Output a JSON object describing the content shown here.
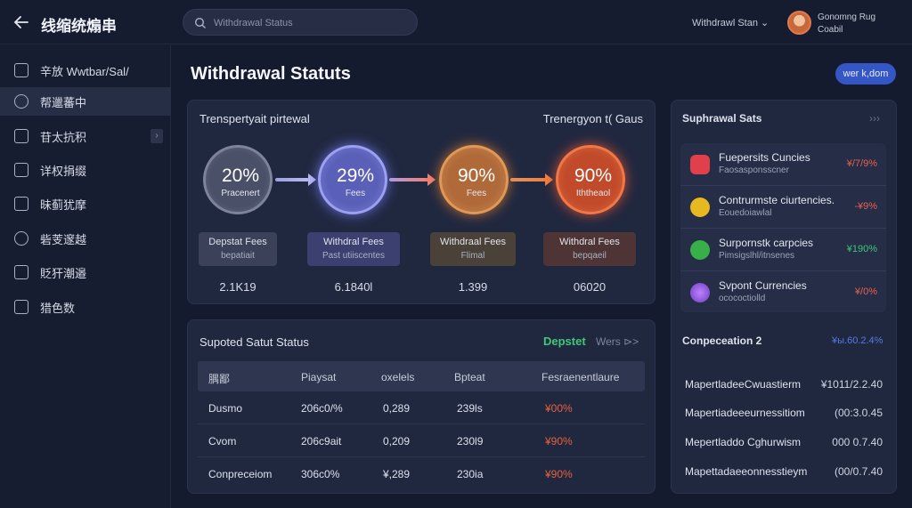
{
  "header": {
    "app_title": "线缩统煽串",
    "search_placeholder": "Withdrawal Status",
    "status": "Withdrawl Stan ⌄",
    "user_line1": "Gonomng Rug",
    "user_line2": "Coabil"
  },
  "sidebar": {
    "items": [
      {
        "label": "辛放 Wwtbar/Sal/"
      },
      {
        "label": "帮邋蕃中"
      },
      {
        "label": "苷太抗积"
      },
      {
        "label": "详权捐缀"
      },
      {
        "label": "昧蓟犹摩"
      },
      {
        "label": "砦芰邃越"
      },
      {
        "label": "貶犴潮邉"
      },
      {
        "label": "猎色数"
      }
    ]
  },
  "main": {
    "title": "Withdrawal Statuts",
    "top_button": "wer k,dom"
  },
  "flow_card": {
    "left_title": "Trenspertyait pirtewal",
    "right_title": "Trenergyon t( Gaus",
    "steps": [
      {
        "pct": "20%",
        "caption": "Pracenert",
        "fee_line1": "Depstat Fees",
        "fee_line2": "bepatiait",
        "amount": "2.1K19"
      },
      {
        "pct": "29%",
        "caption": "Fees",
        "fee_line1": "Withdral Fees",
        "fee_line2": "Past utiiscentes",
        "amount": "6.1840l"
      },
      {
        "pct": "90%",
        "caption": "Fees",
        "fee_line1": "Withdraal Fees",
        "fee_line2": "Flimal",
        "amount": "1.399"
      },
      {
        "pct": "90%",
        "caption": "Iththeaol",
        "fee_line1": "Withdral Fees",
        "fee_line2": "bepqaeil",
        "amount": "06020"
      }
    ]
  },
  "status_card": {
    "title": "Supoted Satut Status",
    "link_green": "Depstet",
    "link_gray": "Wers ⊳>",
    "headers": [
      "腢鄙",
      "Piaysat",
      "oxelels",
      "Bpteat",
      "Fesraenentlaure"
    ],
    "rows": [
      [
        "Dusmo",
        "206c0/%",
        "0,289",
        "239ls",
        "¥00%"
      ],
      [
        "Cvom",
        "206c9ait",
        "0,209",
        "230l9",
        "¥90%"
      ],
      [
        "Conpreceiom",
        "306c0%",
        "¥,289",
        "230ia",
        "¥90%"
      ]
    ]
  },
  "right_panel": {
    "title": "Suphrawal Sats",
    "more": "›››",
    "currencies": [
      {
        "name": "Fuepersits Cuncies",
        "sub": "Faosasponsscner",
        "value": "¥/7/9%",
        "color": "#e8604c",
        "icon": "gift-icon",
        "icon_color": "#e0404c"
      },
      {
        "name": "Contrurmste ciurtencies.",
        "sub": "Eouedoiawlal",
        "value": "-¥9%",
        "color": "#e8604c",
        "icon": "coin-icon",
        "icon_color": "#e8b820"
      },
      {
        "name": "Surpornstk carpcies",
        "sub": "Pimsigslhl/itnsenes",
        "value": "¥190%",
        "color": "#3ec878",
        "icon": "wifi-icon",
        "icon_color": "#38b04a"
      },
      {
        "name": "Svpont Currencies",
        "sub": "ocococtiolld",
        "value": "¥/0%",
        "color": "#e8604c",
        "icon": "orb-icon",
        "icon_color": "#8a5ce0"
      }
    ],
    "comp_title": "Conpeceation 2",
    "comp_value": "¥ы.60.2.4%",
    "comp_rows": [
      {
        "label": "MapertladeeCwuastierm",
        "value": "¥1011/2.2.40"
      },
      {
        "label": "Mapertiadeeeurnessitiom",
        "value": "(00:3.0.45"
      },
      {
        "label": "Mepertladdo Cghurwism",
        "value": "000 0.7.40"
      },
      {
        "label": "Mapettadaeeonnesstieym",
        "value": "(00/0.7.40"
      }
    ]
  }
}
